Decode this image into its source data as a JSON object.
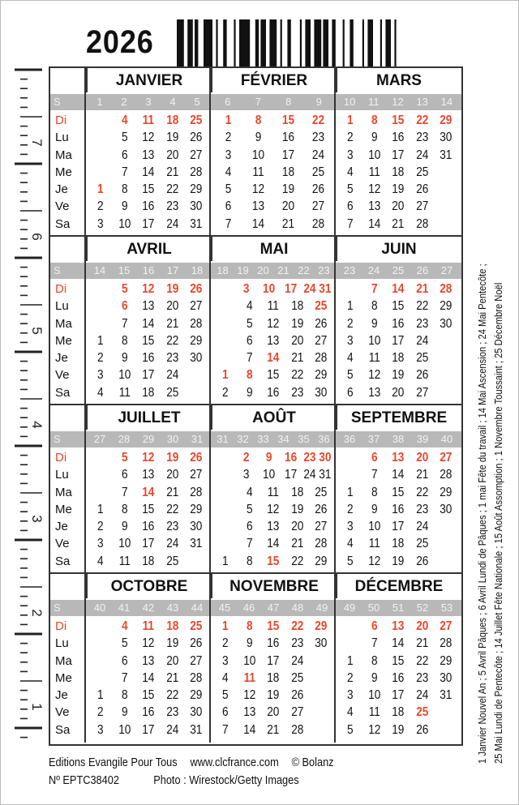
{
  "year": "2026",
  "week_label": "S",
  "weekdays": [
    "Di",
    "Lu",
    "Ma",
    "Me",
    "Je",
    "Ve",
    "Sa"
  ],
  "colors": {
    "sunday_holiday": "#e8472b",
    "week_bar": "#b8b8b8",
    "grid": "#333333"
  },
  "ruler_labels": [
    "7",
    "6",
    "5",
    "4",
    "3",
    "2",
    "1"
  ],
  "quarters": [
    [
      {
        "name": "JANVIER",
        "weeks": [
          "1",
          "2",
          "3",
          "4",
          "5"
        ],
        "holidays": [
          "1"
        ],
        "rows": [
          [
            "",
            "4",
            "11",
            "18",
            "25"
          ],
          [
            "",
            "5",
            "12",
            "19",
            "26"
          ],
          [
            "",
            "6",
            "13",
            "20",
            "27"
          ],
          [
            "",
            "7",
            "14",
            "21",
            "28"
          ],
          [
            "1",
            "8",
            "15",
            "22",
            "29"
          ],
          [
            "2",
            "9",
            "16",
            "23",
            "30"
          ],
          [
            "3",
            "10",
            "17",
            "24",
            "31"
          ]
        ]
      },
      {
        "name": "FÉVRIER",
        "weeks": [
          "6",
          "7",
          "8",
          "9"
        ],
        "holidays": [],
        "rows": [
          [
            "1",
            "8",
            "15",
            "22"
          ],
          [
            "2",
            "9",
            "16",
            "23"
          ],
          [
            "3",
            "10",
            "17",
            "24"
          ],
          [
            "4",
            "11",
            "18",
            "25"
          ],
          [
            "5",
            "12",
            "19",
            "26"
          ],
          [
            "6",
            "13",
            "20",
            "27"
          ],
          [
            "7",
            "14",
            "21",
            "28"
          ]
        ]
      },
      {
        "name": "MARS",
        "weeks": [
          "10",
          "11",
          "12",
          "13",
          "14"
        ],
        "holidays": [],
        "rows": [
          [
            "1",
            "8",
            "15",
            "22",
            "29"
          ],
          [
            "2",
            "9",
            "16",
            "23",
            "30"
          ],
          [
            "3",
            "10",
            "17",
            "24",
            "31"
          ],
          [
            "4",
            "11",
            "18",
            "25",
            ""
          ],
          [
            "5",
            "12",
            "19",
            "26",
            ""
          ],
          [
            "6",
            "13",
            "20",
            "27",
            ""
          ],
          [
            "7",
            "14",
            "21",
            "28",
            ""
          ]
        ]
      }
    ],
    [
      {
        "name": "AVRIL",
        "weeks": [
          "14",
          "15",
          "16",
          "17",
          "18"
        ],
        "holidays": [
          "6"
        ],
        "rows": [
          [
            "",
            "5",
            "12",
            "19",
            "26"
          ],
          [
            "",
            "6",
            "13",
            "20",
            "27"
          ],
          [
            "",
            "7",
            "14",
            "21",
            "28"
          ],
          [
            "1",
            "8",
            "15",
            "22",
            "29"
          ],
          [
            "2",
            "9",
            "16",
            "23",
            "30"
          ],
          [
            "3",
            "10",
            "17",
            "24",
            ""
          ],
          [
            "4",
            "11",
            "18",
            "25",
            ""
          ]
        ]
      },
      {
        "name": "MAI",
        "weeks": [
          "18",
          "19",
          "20",
          "21",
          "22",
          "23"
        ],
        "holidays": [
          "1",
          "8",
          "14",
          "25"
        ],
        "rows": [
          [
            "",
            "3",
            "10",
            "17",
            "24 31"
          ],
          [
            "",
            "4",
            "11",
            "18",
            "25"
          ],
          [
            "",
            "5",
            "12",
            "19",
            "26"
          ],
          [
            "",
            "6",
            "13",
            "20",
            "27"
          ],
          [
            "",
            "7",
            "14",
            "21",
            "28"
          ],
          [
            "1",
            "8",
            "15",
            "22",
            "29"
          ],
          [
            "2",
            "9",
            "16",
            "23",
            "30"
          ]
        ]
      },
      {
        "name": "JUIN",
        "weeks": [
          "23",
          "24",
          "25",
          "26",
          "27"
        ],
        "holidays": [],
        "rows": [
          [
            "",
            "7",
            "14",
            "21",
            "28"
          ],
          [
            "1",
            "8",
            "15",
            "22",
            "29"
          ],
          [
            "2",
            "9",
            "16",
            "23",
            "30"
          ],
          [
            "3",
            "10",
            "17",
            "24",
            ""
          ],
          [
            "4",
            "11",
            "18",
            "25",
            ""
          ],
          [
            "5",
            "12",
            "19",
            "26",
            ""
          ],
          [
            "6",
            "13",
            "20",
            "27",
            ""
          ]
        ]
      }
    ],
    [
      {
        "name": "JUILLET",
        "weeks": [
          "27",
          "28",
          "29",
          "30",
          "31"
        ],
        "holidays": [
          "14"
        ],
        "rows": [
          [
            "",
            "5",
            "12",
            "19",
            "26"
          ],
          [
            "",
            "6",
            "13",
            "20",
            "27"
          ],
          [
            "",
            "7",
            "14",
            "21",
            "28"
          ],
          [
            "1",
            "8",
            "15",
            "22",
            "29"
          ],
          [
            "2",
            "9",
            "16",
            "23",
            "30"
          ],
          [
            "3",
            "10",
            "17",
            "24",
            "31"
          ],
          [
            "4",
            "11",
            "18",
            "25",
            ""
          ]
        ]
      },
      {
        "name": "AOÛT",
        "weeks": [
          "31",
          "32",
          "33",
          "34",
          "35",
          "36"
        ],
        "holidays": [
          "15"
        ],
        "rows": [
          [
            "",
            "2",
            "9",
            "16",
            "23 30"
          ],
          [
            "",
            "3",
            "10",
            "17",
            "24 31"
          ],
          [
            "",
            "4",
            "11",
            "18",
            "25"
          ],
          [
            "",
            "5",
            "12",
            "19",
            "26"
          ],
          [
            "",
            "6",
            "13",
            "20",
            "27"
          ],
          [
            "",
            "7",
            "14",
            "21",
            "28"
          ],
          [
            "1",
            "8",
            "15",
            "22",
            "29"
          ]
        ]
      },
      {
        "name": "SEPTEMBRE",
        "weeks": [
          "36",
          "37",
          "38",
          "39",
          "40"
        ],
        "holidays": [],
        "rows": [
          [
            "",
            "6",
            "13",
            "20",
            "27"
          ],
          [
            "",
            "7",
            "14",
            "21",
            "28"
          ],
          [
            "1",
            "8",
            "15",
            "22",
            "29"
          ],
          [
            "2",
            "9",
            "16",
            "23",
            "30"
          ],
          [
            "3",
            "10",
            "17",
            "24",
            ""
          ],
          [
            "4",
            "11",
            "18",
            "25",
            ""
          ],
          [
            "5",
            "12",
            "19",
            "26",
            ""
          ]
        ]
      }
    ],
    [
      {
        "name": "OCTOBRE",
        "weeks": [
          "40",
          "41",
          "42",
          "43",
          "44"
        ],
        "holidays": [],
        "rows": [
          [
            "",
            "4",
            "11",
            "18",
            "25"
          ],
          [
            "",
            "5",
            "12",
            "19",
            "26"
          ],
          [
            "",
            "6",
            "13",
            "20",
            "27"
          ],
          [
            "",
            "7",
            "14",
            "21",
            "28"
          ],
          [
            "1",
            "8",
            "15",
            "22",
            "29"
          ],
          [
            "2",
            "9",
            "16",
            "23",
            "30"
          ],
          [
            "3",
            "10",
            "17",
            "24",
            "31"
          ]
        ]
      },
      {
        "name": "NOVEMBRE",
        "weeks": [
          "45",
          "46",
          "47",
          "48",
          "49"
        ],
        "holidays": [
          "11"
        ],
        "rows": [
          [
            "1",
            "8",
            "15",
            "22",
            "29"
          ],
          [
            "2",
            "9",
            "16",
            "23",
            "30"
          ],
          [
            "3",
            "10",
            "17",
            "24",
            ""
          ],
          [
            "4",
            "11",
            "18",
            "25",
            ""
          ],
          [
            "5",
            "12",
            "19",
            "26",
            ""
          ],
          [
            "6",
            "13",
            "20",
            "27",
            ""
          ],
          [
            "7",
            "14",
            "21",
            "28",
            ""
          ]
        ]
      },
      {
        "name": "DÉCEMBRE",
        "weeks": [
          "49",
          "50",
          "51",
          "52",
          "53"
        ],
        "holidays": [
          "25"
        ],
        "rows": [
          [
            "",
            "6",
            "13",
            "20",
            "27"
          ],
          [
            "",
            "7",
            "14",
            "21",
            "28"
          ],
          [
            "1",
            "8",
            "15",
            "22",
            "29"
          ],
          [
            "2",
            "9",
            "16",
            "23",
            "30"
          ],
          [
            "3",
            "10",
            "17",
            "24",
            "31"
          ],
          [
            "4",
            "11",
            "18",
            "25",
            ""
          ],
          [
            "5",
            "12",
            "19",
            "26",
            ""
          ]
        ]
      }
    ]
  ],
  "holidays_text": {
    "line1": "1 Janvier Nouvel An ; 5 Avril Pâques ; 6 Avril Lundi de Pâques ; 1 mai Fête du travail ; 14 Mai Ascension ; 24 Mai Pentecôte ;",
    "line2": "25 Mai Lundi de Pentecôte ; 14 Juillet Fête Nationale ; 15 Août Assomption ; 1 Novembre Toussaint ; 25 Décembre Noël"
  },
  "footer": {
    "publisher": "Editions Evangile Pour Tous",
    "website": "www.clcfrance.com",
    "copyright": "© Bolanz",
    "reference": "Nº EPTC38402",
    "photo_credit": "Photo : Wirestock/Getty Images"
  }
}
